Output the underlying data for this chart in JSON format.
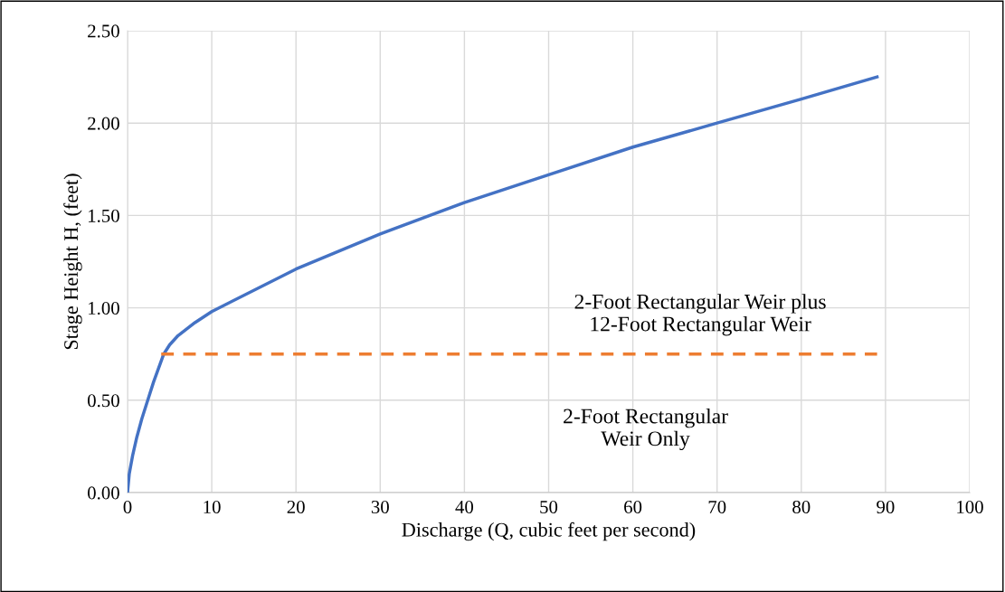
{
  "chart_data": {
    "type": "line",
    "xlabel": "Discharge (Q, cubic feet per second)",
    "ylabel": "Stage Height H, (feet)",
    "xlim": [
      0,
      100
    ],
    "xticks": [
      0,
      10,
      20,
      30,
      40,
      50,
      60,
      70,
      80,
      90,
      100
    ],
    "ylim": [
      0,
      2.5
    ],
    "yticks": [
      {
        "value": 0,
        "label": "0.00"
      },
      {
        "value": 0.5,
        "label": "0.50"
      },
      {
        "value": 1,
        "label": "1.00"
      },
      {
        "value": 1.5,
        "label": "1.50"
      },
      {
        "value": 2,
        "label": "2.00"
      },
      {
        "value": 2.5,
        "label": "2.50"
      }
    ],
    "grid": true,
    "legend": false,
    "marker": "none",
    "series": [
      {
        "color": "#4472c4",
        "line_style": "solid",
        "x": [
          0,
          0.2,
          0.6,
          1.1,
          1.7,
          2.4,
          3.1,
          4.3,
          5,
          6,
          8,
          10,
          20,
          30,
          40,
          50,
          60,
          70,
          80,
          89
        ],
        "values": [
          0,
          0.1,
          0.2,
          0.3,
          0.4,
          0.5,
          0.6,
          0.75,
          0.8,
          0.85,
          0.92,
          0.98,
          1.21,
          1.4,
          1.57,
          1.72,
          1.87,
          2.0,
          2.13,
          2.25
        ]
      },
      {
        "color": "#ed7d31",
        "line_style": "dashed",
        "x": [
          4,
          89
        ],
        "values": [
          0.75,
          0.75
        ]
      }
    ],
    "annotations": [
      "2-Foot Rectangular Weir plus\n12-Foot Rectangular Weir",
      "2-Foot Rectangular\nWeir Only"
    ]
  }
}
